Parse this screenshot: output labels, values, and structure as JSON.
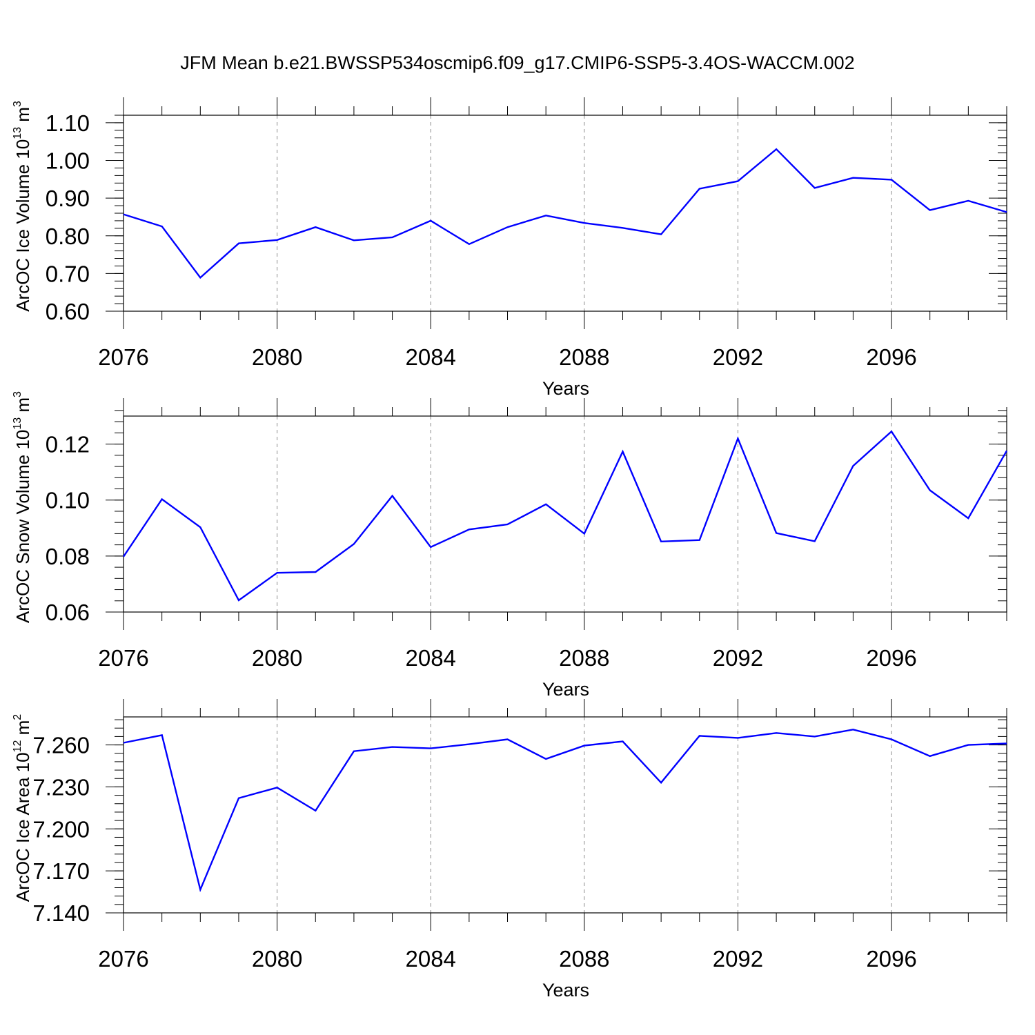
{
  "title": "JFM Mean b.e21.BWSSP534oscmip6.f09_g17.CMIP6-SSP5-3.4OS-WACCM.002",
  "colors": {
    "line": "#0000ff",
    "axis": "#000000",
    "grid": "#8c8c8c"
  },
  "chart_data": [
    {
      "type": "line",
      "xlabel": "Years",
      "ylabel": {
        "main": "ArcOC Ice Volume 10",
        "sup": "13",
        "unit": " m",
        "unit_sup": "3"
      },
      "xlim": [
        2076,
        2099
      ],
      "ylim": [
        0.6,
        1.12
      ],
      "xticks": [
        2076,
        2080,
        2084,
        2088,
        2092,
        2096
      ],
      "xtick_labels": [
        "2076",
        "2080",
        "2084",
        "2088",
        "2092",
        "2096"
      ],
      "yticks": [
        0.6,
        0.7,
        0.8,
        0.9,
        1.0,
        1.1
      ],
      "ytick_labels": [
        "0.60",
        "0.70",
        "0.80",
        "0.90",
        "1.00",
        "1.10"
      ],
      "yminor": 0.02,
      "grid": "vertical-dashed",
      "x": [
        2076,
        2077,
        2078,
        2079,
        2080,
        2081,
        2082,
        2083,
        2084,
        2085,
        2086,
        2087,
        2088,
        2089,
        2090,
        2091,
        2092,
        2093,
        2094,
        2095,
        2096,
        2097,
        2098,
        2099
      ],
      "values": [
        0.857,
        0.825,
        0.689,
        0.78,
        0.789,
        0.823,
        0.788,
        0.796,
        0.84,
        0.778,
        0.823,
        0.854,
        0.834,
        0.821,
        0.804,
        0.925,
        0.945,
        1.03,
        0.927,
        0.954,
        0.949,
        0.868,
        0.893,
        0.863
      ]
    },
    {
      "type": "line",
      "xlabel": "Years",
      "ylabel": {
        "main": "ArcOC Snow Volume 10",
        "sup": "13",
        "unit": " m",
        "unit_sup": "3"
      },
      "xlim": [
        2076,
        2099
      ],
      "ylim": [
        0.06,
        0.13
      ],
      "xticks": [
        2076,
        2080,
        2084,
        2088,
        2092,
        2096
      ],
      "xtick_labels": [
        "2076",
        "2080",
        "2084",
        "2088",
        "2092",
        "2096"
      ],
      "yticks": [
        0.06,
        0.08,
        0.1,
        0.12
      ],
      "ytick_labels": [
        "0.06",
        "0.08",
        "0.10",
        "0.12"
      ],
      "yminor": 0.004,
      "grid": "vertical-dashed",
      "x": [
        2076,
        2077,
        2078,
        2079,
        2080,
        2081,
        2082,
        2083,
        2084,
        2085,
        2086,
        2087,
        2088,
        2089,
        2090,
        2091,
        2092,
        2093,
        2094,
        2095,
        2096,
        2097,
        2098,
        2099
      ],
      "values": [
        0.0798,
        0.1003,
        0.0903,
        0.0642,
        0.074,
        0.0743,
        0.0843,
        0.1015,
        0.0832,
        0.0895,
        0.0913,
        0.0985,
        0.088,
        0.1173,
        0.0852,
        0.0857,
        0.122,
        0.0882,
        0.0853,
        0.1122,
        0.1245,
        0.1035,
        0.0935,
        0.1176
      ]
    },
    {
      "type": "line",
      "xlabel": "Years",
      "ylabel": {
        "main": "ArcOC Ice Area 10",
        "sup": "12",
        "unit": " m",
        "unit_sup": "2"
      },
      "xlim": [
        2076,
        2099
      ],
      "ylim": [
        7.14,
        7.28
      ],
      "xticks": [
        2076,
        2080,
        2084,
        2088,
        2092,
        2096
      ],
      "xtick_labels": [
        "2076",
        "2080",
        "2084",
        "2088",
        "2092",
        "2096"
      ],
      "yticks": [
        7.14,
        7.17,
        7.2,
        7.23,
        7.26
      ],
      "ytick_labels": [
        "7.140",
        "7.170",
        "7.200",
        "7.230",
        "7.260"
      ],
      "yminor": 0.006,
      "grid": "vertical-dashed",
      "x": [
        2076,
        2077,
        2078,
        2079,
        2080,
        2081,
        2082,
        2083,
        2084,
        2085,
        2086,
        2087,
        2088,
        2089,
        2090,
        2091,
        2092,
        2093,
        2094,
        2095,
        2096,
        2097,
        2098,
        2099
      ],
      "values": [
        7.2615,
        7.267,
        7.1566,
        7.222,
        7.2295,
        7.213,
        7.2555,
        7.2585,
        7.2575,
        7.2605,
        7.264,
        7.25,
        7.2595,
        7.2625,
        7.233,
        7.2665,
        7.265,
        7.2685,
        7.266,
        7.271,
        7.264,
        7.252,
        7.26,
        7.261
      ]
    }
  ]
}
